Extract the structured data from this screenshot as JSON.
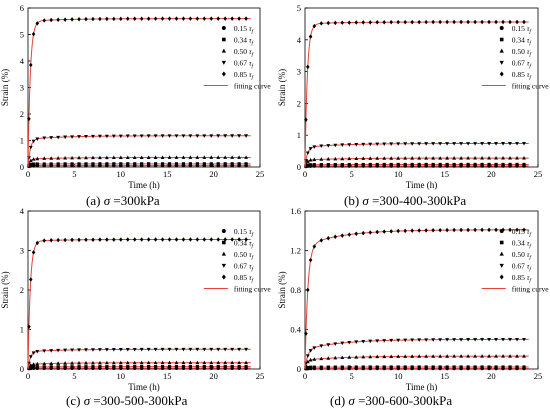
{
  "legend_entries": [
    {
      "label": "0.15",
      "marker": "circle"
    },
    {
      "label": "0.34",
      "marker": "square"
    },
    {
      "label": "0.50",
      "marker": "triangle-up"
    },
    {
      "label": "0.67",
      "marker": "triangle-down"
    },
    {
      "label": "0.85",
      "marker": "diamond"
    }
  ],
  "legend_subscript": "τ",
  "legend_subscript_f": "f",
  "fitting_label": "fitting curve",
  "captions": [
    {
      "prefix": "(a) ",
      "sym": "σ",
      "text": " =300kPa"
    },
    {
      "prefix": "(b) ",
      "sym": "σ",
      "text": " =300-400-300kPa"
    },
    {
      "prefix": "(c) ",
      "sym": "σ",
      "text": " =300-500-300kPa"
    },
    {
      "prefix": "(d) ",
      "sym": "σ",
      "text": " =300-600-300kPa"
    }
  ],
  "chart_data": [
    {
      "type": "scatter",
      "panel": "a",
      "xlabel": "Time (h)",
      "ylabel": "Strain (%)",
      "xlim": [
        0,
        25
      ],
      "ylim": [
        0,
        6
      ],
      "xticks": [
        "0",
        "5",
        "10",
        "15",
        "20",
        "25"
      ],
      "yticks": [
        "0",
        "1",
        "2",
        "3",
        "4",
        "5",
        "6"
      ],
      "legend_position": "right",
      "series": [
        {
          "name": "0.15",
          "marker": "circle",
          "final": 0.05,
          "rise": 0.05,
          "creep": 0.0,
          "tau": 0.15
        },
        {
          "name": "0.34",
          "marker": "square",
          "final": 0.12,
          "rise": 0.11,
          "creep": 0.01,
          "tau": 0.15
        },
        {
          "name": "0.50",
          "marker": "triangle-up",
          "final": 0.36,
          "rise": 0.3,
          "creep": 0.06,
          "tau": 0.2
        },
        {
          "name": "0.67",
          "marker": "triangle-down",
          "final": 1.18,
          "rise": 1.05,
          "creep": 0.13,
          "tau": 0.25
        },
        {
          "name": "0.85",
          "marker": "diamond",
          "final": 5.6,
          "rise": 5.5,
          "creep": 0.1,
          "tau": 0.25
        }
      ]
    },
    {
      "type": "scatter",
      "panel": "b",
      "xlabel": "Time (h)",
      "ylabel": "Strain (%)",
      "xlim": [
        0,
        25
      ],
      "ylim": [
        0,
        5
      ],
      "xticks": [
        "0",
        "5",
        "10",
        "15",
        "20",
        "25"
      ],
      "yticks": [
        "0",
        "1",
        "2",
        "3",
        "4",
        "5"
      ],
      "legend_position": "right",
      "series": [
        {
          "name": "0.15",
          "marker": "circle",
          "final": 0.03,
          "rise": 0.03,
          "creep": 0.0,
          "tau": 0.15
        },
        {
          "name": "0.34",
          "marker": "square",
          "final": 0.08,
          "rise": 0.07,
          "creep": 0.01,
          "tau": 0.15
        },
        {
          "name": "0.50",
          "marker": "triangle-up",
          "final": 0.28,
          "rise": 0.22,
          "creep": 0.06,
          "tau": 0.2
        },
        {
          "name": "0.67",
          "marker": "triangle-down",
          "final": 0.74,
          "rise": 0.62,
          "creep": 0.12,
          "tau": 0.25
        },
        {
          "name": "0.85",
          "marker": "diamond",
          "final": 4.56,
          "rise": 4.5,
          "creep": 0.06,
          "tau": 0.25
        }
      ]
    },
    {
      "type": "scatter",
      "panel": "c",
      "xlabel": "Time (h)",
      "ylabel": "Strain (%)",
      "xlim": [
        0,
        25
      ],
      "ylim": [
        0,
        4
      ],
      "xticks": [
        "0",
        "5",
        "10",
        "15",
        "20",
        "25"
      ],
      "yticks": [
        "0",
        "1",
        "2",
        "3",
        "4"
      ],
      "legend_position": "right",
      "series": [
        {
          "name": "0.15",
          "marker": "circle",
          "final": 0.02,
          "rise": 0.02,
          "creep": 0.0,
          "tau": 0.15
        },
        {
          "name": "0.34",
          "marker": "square",
          "final": 0.06,
          "rise": 0.05,
          "creep": 0.01,
          "tau": 0.15
        },
        {
          "name": "0.50",
          "marker": "triangle-up",
          "final": 0.16,
          "rise": 0.12,
          "creep": 0.04,
          "tau": 0.2
        },
        {
          "name": "0.67",
          "marker": "triangle-down",
          "final": 0.5,
          "rise": 0.44,
          "creep": 0.06,
          "tau": 0.25
        },
        {
          "name": "0.85",
          "marker": "diamond",
          "final": 3.28,
          "rise": 3.24,
          "creep": 0.04,
          "tau": 0.25
        }
      ]
    },
    {
      "type": "scatter",
      "panel": "d",
      "xlabel": "Time (h)",
      "ylabel": "Strain (%)",
      "xlim": [
        0,
        25
      ],
      "ylim": [
        0,
        1.6
      ],
      "xticks": [
        "0",
        "5",
        "10",
        "15",
        "20",
        "25"
      ],
      "yticks": [
        "0",
        "0.4",
        "0.8",
        "1.2",
        "1.6"
      ],
      "legend_position": "right",
      "series": [
        {
          "name": "0.15",
          "marker": "circle",
          "final": 0.005,
          "rise": 0.005,
          "creep": 0.0,
          "tau": 0.15
        },
        {
          "name": "0.34",
          "marker": "square",
          "final": 0.02,
          "rise": 0.018,
          "creep": 0.002,
          "tau": 0.15
        },
        {
          "name": "0.50",
          "marker": "triangle-up",
          "final": 0.13,
          "rise": 0.09,
          "creep": 0.04,
          "tau": 0.2
        },
        {
          "name": "0.67",
          "marker": "triangle-down",
          "final": 0.3,
          "rise": 0.2,
          "creep": 0.1,
          "tau": 0.3
        },
        {
          "name": "0.85",
          "marker": "diamond",
          "final": 1.41,
          "rise": 1.25,
          "creep": 0.16,
          "tau": 0.3
        }
      ]
    }
  ]
}
